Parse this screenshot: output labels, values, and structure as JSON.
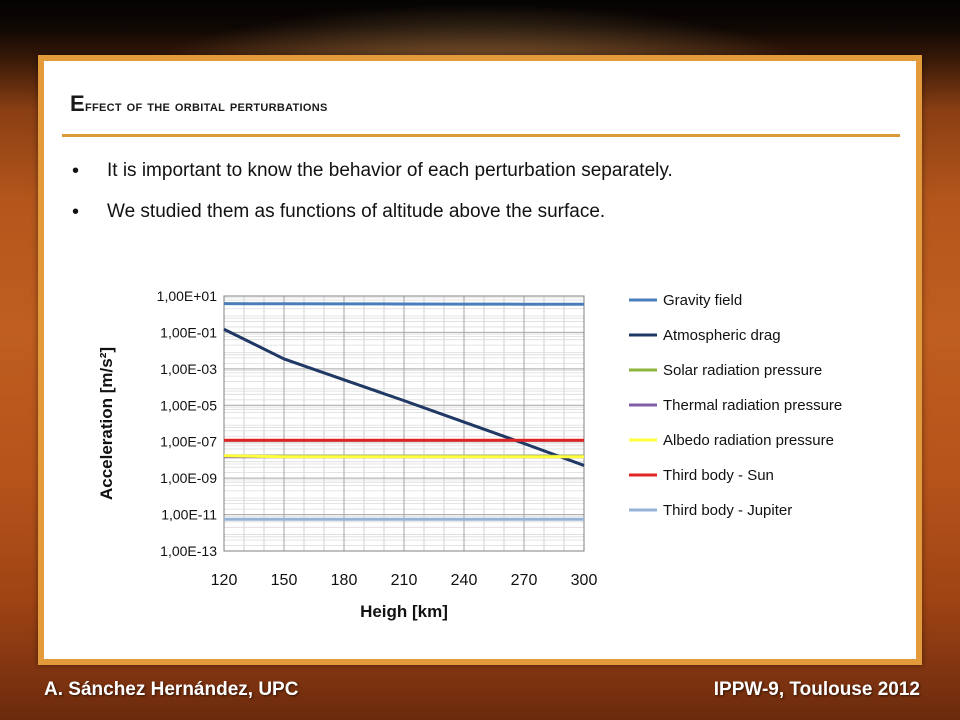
{
  "slide": {
    "title": "Effect of the orbital perturbations",
    "bullets": [
      "It is important to know the behavior of each perturbation separately.",
      "We studied them as functions of altitude above the surface."
    ]
  },
  "footer": {
    "left": "A. Sánchez Hernández, UPC",
    "right": "IPPW-9, Toulouse 2012"
  },
  "chart_data": {
    "type": "line",
    "xlabel": "Heigh [km]",
    "ylabel": "Acceleration [m/s²]",
    "xlim": [
      120,
      300
    ],
    "ylim": [
      1e-13,
      10.0
    ],
    "yscale": "log",
    "grid": true,
    "legend_position": "right",
    "x_ticks": [
      120,
      150,
      180,
      210,
      240,
      270,
      300
    ],
    "y_ticks": [
      {
        "value": 10.0,
        "label": "1,00E+01"
      },
      {
        "value": 0.1,
        "label": "1,00E-01"
      },
      {
        "value": 0.001,
        "label": "1,00E-03"
      },
      {
        "value": 1e-05,
        "label": "1,00E-05"
      },
      {
        "value": 1e-07,
        "label": "1,00E-07"
      },
      {
        "value": 1e-09,
        "label": "1,00E-09"
      },
      {
        "value": 1e-11,
        "label": "1,00E-11"
      },
      {
        "value": 1e-13,
        "label": "1,00E-13"
      }
    ],
    "x": [
      120,
      150,
      180,
      210,
      240,
      270,
      300
    ],
    "series": [
      {
        "name": "Gravity field",
        "color": "#4a7ebb",
        "values": [
          3.8,
          3.75,
          3.7,
          3.65,
          3.6,
          3.55,
          3.5
        ]
      },
      {
        "name": "Atmospheric drag",
        "color": "#1f3864",
        "values": [
          0.15,
          0.0035,
          0.00025,
          1.8e-05,
          1.2e-06,
          8e-08,
          5e-09
        ]
      },
      {
        "name": "Solar radiation pressure",
        "color": "#8db63c",
        "values": [
          1.6e-08,
          1.6e-08,
          1.6e-08,
          1.6e-08,
          1.6e-08,
          1.6e-08,
          1.6e-08
        ]
      },
      {
        "name": "Thermal radiation pressure",
        "color": "#7f5fa8",
        "values": [
          1.5e-08,
          1.5e-08,
          1.5e-08,
          1.5e-08,
          1.5e-08,
          1.5e-08,
          1.5e-08
        ]
      },
      {
        "name": "Albedo radiation pressure",
        "color": "#ffff3b",
        "values": [
          1.7e-08,
          1.5e-08,
          1.5e-08,
          1.5e-08,
          1.5e-08,
          1.5e-08,
          1.5e-08
        ]
      },
      {
        "name": "Third body - Sun",
        "color": "#e02424",
        "values": [
          1.2e-07,
          1.2e-07,
          1.2e-07,
          1.2e-07,
          1.2e-07,
          1.2e-07,
          1.2e-07
        ]
      },
      {
        "name": "Third body - Jupiter",
        "color": "#95b3d7",
        "values": [
          5.5e-12,
          5.5e-12,
          5.5e-12,
          5.5e-12,
          5.5e-12,
          5.5e-12,
          5.5e-12
        ]
      }
    ]
  }
}
